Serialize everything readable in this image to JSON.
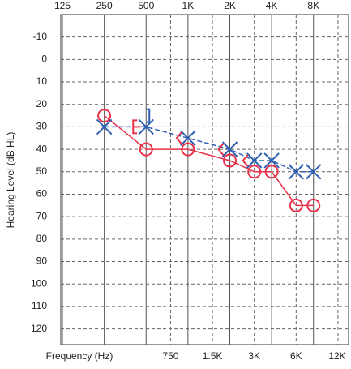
{
  "chart_data": {
    "type": "audiogram",
    "x_label": "Frequency (Hz)",
    "y_label": "Hearing Level (dB HL)",
    "log_x": true,
    "y_inverted": true,
    "xlim": [
      125,
      14300
    ],
    "ylim": [
      -20,
      127
    ],
    "xticks": [
      125,
      250,
      500,
      {
        "value": 1000,
        "label": "1K"
      },
      {
        "value": 2000,
        "label": "2K"
      },
      {
        "value": 4000,
        "label": "4K"
      },
      {
        "value": 8000,
        "label": "8K"
      }
    ],
    "xticks_minor": [
      750,
      {
        "value": 1500,
        "label": "1.5K"
      },
      {
        "value": 3000,
        "label": "3K"
      },
      {
        "value": 6000,
        "label": "6K"
      },
      {
        "value": 12000,
        "label": "12K"
      }
    ],
    "yticks": [
      -10,
      0,
      10,
      20,
      30,
      40,
      50,
      60,
      70,
      80,
      90,
      100,
      110,
      120
    ],
    "x": [
      250,
      500,
      1000,
      2000,
      3000,
      4000,
      6000,
      8000
    ],
    "series": [
      {
        "color": "#e8324a",
        "marker": "circle",
        "line": "solid",
        "values": [
          25,
          40,
          40,
          45,
          50,
          50,
          65,
          65
        ]
      },
      {
        "color": "#2f5fb3",
        "marker": "cross",
        "line": "dashed",
        "values": [
          30,
          30,
          35,
          40,
          45,
          45,
          50,
          50
        ]
      },
      {
        "color": "#e8324a",
        "marker": "masked-bracket-left",
        "values": [
          null,
          30,
          null,
          null,
          null,
          null,
          null,
          null
        ]
      },
      {
        "color": "#e8324a",
        "marker": "angle-left",
        "values": [
          null,
          null,
          35,
          40,
          45,
          null,
          null,
          null
        ]
      },
      {
        "color": "#2f5fb3",
        "marker": "bracket-right",
        "values": [
          null,
          25,
          null,
          null,
          null,
          null,
          null,
          null
        ]
      }
    ]
  }
}
